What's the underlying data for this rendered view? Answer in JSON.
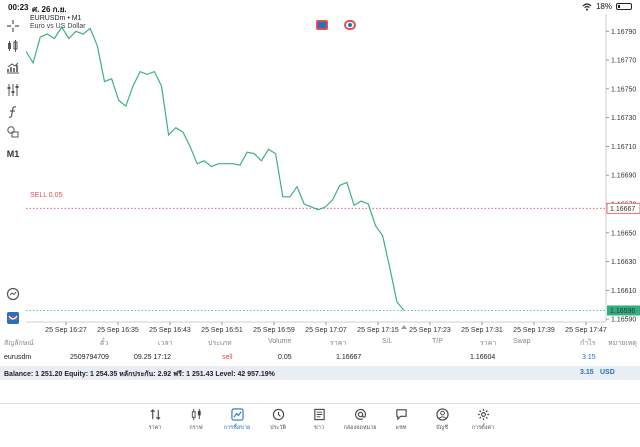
{
  "status": {
    "time": "00:23",
    "date": "ศ. 26 ก.ย.",
    "battery": "18%",
    "battery_level": 0.18
  },
  "chart_header": {
    "symbol": "EURUSDm • M1",
    "description": "Euro vs US Dollar"
  },
  "left_tools": {
    "timeframe": "M1"
  },
  "sell_line": {
    "label": "SELL 0.05",
    "price": "1.16667"
  },
  "current_price": "1.16596",
  "chart_data": {
    "type": "line",
    "color": "#3cb37a",
    "price_ticks": [
      "1.16790",
      "1.16770",
      "1.16750",
      "1.16730",
      "1.16710",
      "1.16690",
      "1.16670",
      "1.16650",
      "1.16630",
      "1.16610",
      "1.16590"
    ],
    "time_ticks": [
      "25 Sep 16:27",
      "25 Sep 16:35",
      "25 Sep 16:43",
      "25 Sep 16:51",
      "25 Sep 16:59",
      "25 Sep 17:07",
      "25 Sep 17:15",
      "25 Sep 17:23",
      "25 Sep 17:31",
      "25 Sep 17:39",
      "25 Sep 17:47"
    ],
    "ylim": [
      1.16588,
      1.16802
    ],
    "values": [
      1.16776,
      1.16768,
      1.16786,
      1.16788,
      1.16785,
      1.16793,
      1.16785,
      1.1679,
      1.16788,
      1.16792,
      1.1678,
      1.16755,
      1.16757,
      1.16742,
      1.16738,
      1.16752,
      1.16762,
      1.1676,
      1.16762,
      1.16752,
      1.16718,
      1.16723,
      1.1672,
      1.1671,
      1.16698,
      1.167,
      1.16696,
      1.16698,
      1.16698,
      1.16698,
      1.16697,
      1.16706,
      1.16705,
      1.167,
      1.16708,
      1.16705,
      1.16675,
      1.16675,
      1.16682,
      1.1667,
      1.16668,
      1.16666,
      1.16668,
      1.16673,
      1.16683,
      1.16685,
      1.16669,
      1.16672,
      1.1667,
      1.16655,
      1.16648,
      1.16626,
      1.16602,
      1.16596
    ]
  },
  "positions": {
    "headers": [
      "สัญลักษณ์",
      "ตั๋ว",
      "เวลา",
      "ประเภท",
      "Volume",
      "ราคา",
      "S/L",
      "T/P",
      "ราคา",
      "Swap",
      "กำไร",
      "หมายเหตุ"
    ],
    "row": {
      "symbol": "eurusdm",
      "ticket": "2509794709",
      "time": "09.25 17:12",
      "type": "sell",
      "volume": "0.05",
      "price": "1.16667",
      "sl": "",
      "tp": "",
      "current": "1.16604",
      "swap": "",
      "profit": "3.15"
    },
    "balance_text": "Balance: 1 251.20 Equity: 1 254.35 หลักประกัน: 2.92 ฟรี: 1 251.43 Level: 42 957.19%",
    "total": "3.15",
    "currency": "USD"
  },
  "tabs": [
    {
      "label": "ราคา",
      "icon": "quotes-icon"
    },
    {
      "label": "กราฟ",
      "icon": "candles-icon"
    },
    {
      "label": "การซื้อขาย",
      "icon": "trade-icon",
      "active": true
    },
    {
      "label": "ประวัติ",
      "icon": "history-icon"
    },
    {
      "label": "ข่าว",
      "icon": "news-icon"
    },
    {
      "label": "กล่องจดหมาย",
      "icon": "mailbox-icon"
    },
    {
      "label": "แชท",
      "icon": "chat-icon"
    },
    {
      "label": "บัญชี",
      "icon": "account-icon"
    },
    {
      "label": "การตั้งค่า",
      "icon": "settings-icon"
    }
  ],
  "colors": {
    "accent": "#2a6fbf",
    "line": "#3cb37a",
    "sell": "#e05050",
    "current_line": "#2fae7e"
  }
}
